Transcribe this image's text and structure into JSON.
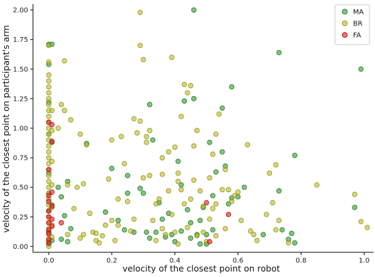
{
  "chart_data": {
    "type": "scatter",
    "xlabel": "velocity of the closest point on robot",
    "ylabel": "velocity of the closest point on participant's arm",
    "xlim": [
      -0.05,
      1.03
    ],
    "ylim": [
      -0.05,
      2.05
    ],
    "xticks": [
      "0.0",
      "0.2",
      "0.4",
      "0.6",
      "0.8",
      "1.0"
    ],
    "yticks": [
      "0.00",
      "0.25",
      "0.50",
      "0.75",
      "1.00",
      "1.25",
      "1.50",
      "1.75",
      "2.00"
    ],
    "grid": false,
    "legend_position": "top-right",
    "series": [
      {
        "name": "MA",
        "color": "#2ca02c",
        "edge": "#1f6b1f",
        "points": [
          [
            0.0,
            1.71
          ],
          [
            0.01,
            1.71
          ],
          [
            0.0,
            1.54
          ],
          [
            0.0,
            1.22
          ],
          [
            0.0,
            0.95
          ],
          [
            0.0,
            0.62
          ],
          [
            0.0,
            0.45
          ],
          [
            0.0,
            0.3
          ],
          [
            0.0,
            0.12
          ],
          [
            0.0,
            0.02
          ],
          [
            0.01,
            0.88
          ],
          [
            0.01,
            0.35
          ],
          [
            0.01,
            0.05
          ],
          [
            0.03,
            0.5
          ],
          [
            0.04,
            0.42
          ],
          [
            0.05,
            0.26
          ],
          [
            0.06,
            0.55
          ],
          [
            0.07,
            0.15
          ],
          [
            0.04,
            0.06
          ],
          [
            0.06,
            0.04
          ],
          [
            0.12,
            0.87
          ],
          [
            0.18,
            0.29
          ],
          [
            0.2,
            0.66
          ],
          [
            0.22,
            0.22
          ],
          [
            0.24,
            0.14
          ],
          [
            0.25,
            0.45
          ],
          [
            0.25,
            0.6
          ],
          [
            0.27,
            0.12
          ],
          [
            0.29,
            0.49
          ],
          [
            0.3,
            0.45
          ],
          [
            0.31,
            0.12
          ],
          [
            0.32,
            0.07
          ],
          [
            0.32,
            1.2
          ],
          [
            0.33,
            0.9
          ],
          [
            0.34,
            0.12
          ],
          [
            0.35,
            0.37
          ],
          [
            0.36,
            0.23
          ],
          [
            0.37,
            0.08
          ],
          [
            0.38,
            0.28
          ],
          [
            0.39,
            0.1
          ],
          [
            0.4,
            0.04
          ],
          [
            0.41,
            0.72
          ],
          [
            0.42,
            0.52
          ],
          [
            0.42,
            0.13
          ],
          [
            0.43,
            1.23
          ],
          [
            0.44,
            0.31
          ],
          [
            0.45,
            0.2
          ],
          [
            0.45,
            0.07
          ],
          [
            0.46,
            1.25
          ],
          [
            0.46,
            2.0
          ],
          [
            0.47,
            0.1
          ],
          [
            0.48,
            0.22
          ],
          [
            0.48,
            0.02
          ],
          [
            0.49,
            0.33
          ],
          [
            0.5,
            0.1
          ],
          [
            0.5,
            0.02
          ],
          [
            0.51,
            0.88
          ],
          [
            0.52,
            0.43
          ],
          [
            0.52,
            0.14
          ],
          [
            0.53,
            0.63
          ],
          [
            0.55,
            1.17
          ],
          [
            0.55,
            0.8
          ],
          [
            0.56,
            0.68
          ],
          [
            0.57,
            0.36
          ],
          [
            0.58,
            1.35
          ],
          [
            0.58,
            0.41
          ],
          [
            0.6,
            0.42
          ],
          [
            0.73,
            1.64
          ],
          [
            0.73,
            0.47
          ],
          [
            0.74,
            0.14
          ],
          [
            0.76,
            0.06
          ],
          [
            0.77,
            0.11
          ],
          [
            0.78,
            0.77
          ],
          [
            0.78,
            0.03
          ],
          [
            0.97,
            0.33
          ],
          [
            0.99,
            1.5
          ],
          [
            0.68,
            0.1
          ],
          [
            0.62,
            0.5
          ]
        ]
      },
      {
        "name": "BR",
        "color": "#bcbd22",
        "edge": "#8c8d1a",
        "points": [
          [
            0.0,
            1.7
          ],
          [
            0.0,
            1.56
          ],
          [
            0.0,
            1.45
          ],
          [
            0.0,
            1.4
          ],
          [
            0.0,
            1.35
          ],
          [
            0.0,
            1.3
          ],
          [
            0.0,
            1.25
          ],
          [
            0.0,
            1.2
          ],
          [
            0.0,
            1.15
          ],
          [
            0.0,
            1.1
          ],
          [
            0.0,
            1.05
          ],
          [
            0.0,
            1.0
          ],
          [
            0.0,
            0.95
          ],
          [
            0.0,
            0.9
          ],
          [
            0.0,
            0.85
          ],
          [
            0.0,
            0.8
          ],
          [
            0.0,
            0.75
          ],
          [
            0.0,
            0.7
          ],
          [
            0.0,
            0.65
          ],
          [
            0.0,
            0.6
          ],
          [
            0.0,
            0.55
          ],
          [
            0.0,
            0.5
          ],
          [
            0.0,
            0.45
          ],
          [
            0.0,
            0.4
          ],
          [
            0.0,
            0.35
          ],
          [
            0.0,
            0.3
          ],
          [
            0.0,
            0.25
          ],
          [
            0.0,
            0.2
          ],
          [
            0.0,
            0.15
          ],
          [
            0.0,
            0.1
          ],
          [
            0.0,
            0.05
          ],
          [
            0.0,
            0.0
          ],
          [
            0.01,
            1.15
          ],
          [
            0.01,
            0.98
          ],
          [
            0.01,
            0.72
          ],
          [
            0.01,
            0.52
          ],
          [
            0.01,
            0.33
          ],
          [
            0.01,
            0.18
          ],
          [
            0.01,
            0.08
          ],
          [
            0.03,
            1.0
          ],
          [
            0.04,
            1.2
          ],
          [
            0.05,
            1.15
          ],
          [
            0.05,
            1.57
          ],
          [
            0.06,
            0.52
          ],
          [
            0.06,
            0.1
          ],
          [
            0.07,
            1.07
          ],
          [
            0.08,
            0.32
          ],
          [
            0.09,
            0.5
          ],
          [
            0.1,
            0.95
          ],
          [
            0.1,
            0.07
          ],
          [
            0.11,
            0.1
          ],
          [
            0.11,
            0.53
          ],
          [
            0.12,
            0.86
          ],
          [
            0.13,
            0.28
          ],
          [
            0.14,
            0.12
          ],
          [
            0.15,
            0.11
          ],
          [
            0.15,
            0.05
          ],
          [
            0.16,
            0.03
          ],
          [
            0.17,
            0.09
          ],
          [
            0.18,
            0.18
          ],
          [
            0.19,
            0.57
          ],
          [
            0.2,
            0.9
          ],
          [
            0.2,
            0.22
          ],
          [
            0.21,
            0.05
          ],
          [
            0.22,
            0.18
          ],
          [
            0.22,
            0.4
          ],
          [
            0.23,
            0.93
          ],
          [
            0.24,
            0.7
          ],
          [
            0.25,
            0.38
          ],
          [
            0.26,
            0.13
          ],
          [
            0.27,
            0.23
          ],
          [
            0.27,
            1.08
          ],
          [
            0.28,
            0.96
          ],
          [
            0.29,
            1.06
          ],
          [
            0.29,
            1.98
          ],
          [
            0.29,
            1.7
          ],
          [
            0.3,
            1.58
          ],
          [
            0.3,
            0.58
          ],
          [
            0.31,
            0.88
          ],
          [
            0.31,
            0.93
          ],
          [
            0.32,
            0.98
          ],
          [
            0.32,
            0.6
          ],
          [
            0.33,
            0.22
          ],
          [
            0.34,
            0.05
          ],
          [
            0.34,
            0.36
          ],
          [
            0.35,
            0.4
          ],
          [
            0.36,
            0.15
          ],
          [
            0.36,
            0.75
          ],
          [
            0.36,
            0.61
          ],
          [
            0.37,
            0.1
          ],
          [
            0.38,
            0.8
          ],
          [
            0.38,
            0.47
          ],
          [
            0.39,
            1.6
          ],
          [
            0.39,
            0.27
          ],
          [
            0.4,
            0.12
          ],
          [
            0.4,
            0.84
          ],
          [
            0.41,
            0.02
          ],
          [
            0.41,
            0.55
          ],
          [
            0.41,
            0.62
          ],
          [
            0.42,
            0.48
          ],
          [
            0.42,
            1.1
          ],
          [
            0.43,
            0.36
          ],
          [
            0.43,
            1.37
          ],
          [
            0.44,
            1.3
          ],
          [
            0.44,
            0.16
          ],
          [
            0.45,
            0.4
          ],
          [
            0.45,
            1.36
          ],
          [
            0.46,
            0.56
          ],
          [
            0.46,
            0.85
          ],
          [
            0.47,
            0.98
          ],
          [
            0.47,
            0.09
          ],
          [
            0.48,
            0.47
          ],
          [
            0.49,
            0.34
          ],
          [
            0.49,
            0.12
          ],
          [
            0.5,
            0.04
          ],
          [
            0.51,
            0.58
          ],
          [
            0.51,
            0.23
          ],
          [
            0.52,
            0.32
          ],
          [
            0.53,
            0.36
          ],
          [
            0.53,
            0.09
          ],
          [
            0.54,
            1.12
          ],
          [
            0.55,
            0.48
          ],
          [
            0.56,
            0.15
          ],
          [
            0.56,
            0.65
          ],
          [
            0.57,
            0.48
          ],
          [
            0.58,
            0.38
          ],
          [
            0.59,
            0.43
          ],
          [
            0.6,
            0.46
          ],
          [
            0.61,
            0.22
          ],
          [
            0.63,
            0.86
          ],
          [
            0.64,
            0.13
          ],
          [
            0.66,
            0.05
          ],
          [
            0.69,
            0.27
          ],
          [
            0.7,
            0.62
          ],
          [
            0.71,
            0.37
          ],
          [
            0.72,
            0.69
          ],
          [
            0.72,
            0.14
          ],
          [
            0.73,
            0.22
          ],
          [
            0.76,
            0.03
          ],
          [
            0.85,
            0.52
          ],
          [
            0.97,
            0.44
          ],
          [
            0.99,
            0.21
          ],
          [
            1.01,
            0.16
          ],
          [
            0.65,
            0.1
          ],
          [
            0.53,
            0.95
          ],
          [
            0.52,
            0.78
          ]
        ]
      },
      {
        "name": "FA",
        "color": "#e8141a",
        "edge": "#a50d12",
        "points": [
          [
            0.0,
            1.05
          ],
          [
            0.01,
            1.03
          ],
          [
            0.01,
            0.89
          ],
          [
            0.0,
            0.65
          ],
          [
            0.01,
            0.46
          ],
          [
            0.0,
            0.43
          ],
          [
            0.0,
            0.38
          ],
          [
            0.01,
            0.34
          ],
          [
            0.0,
            0.3
          ],
          [
            0.0,
            0.25
          ],
          [
            0.01,
            0.23
          ],
          [
            0.0,
            0.2
          ],
          [
            0.01,
            0.17
          ],
          [
            0.0,
            0.14
          ],
          [
            0.0,
            0.11
          ],
          [
            0.0,
            0.06
          ],
          [
            0.0,
            0.03
          ],
          [
            0.04,
            0.2
          ],
          [
            0.5,
            0.37
          ],
          [
            0.51,
            0.04
          ],
          [
            0.57,
            0.27
          ]
        ]
      }
    ]
  }
}
